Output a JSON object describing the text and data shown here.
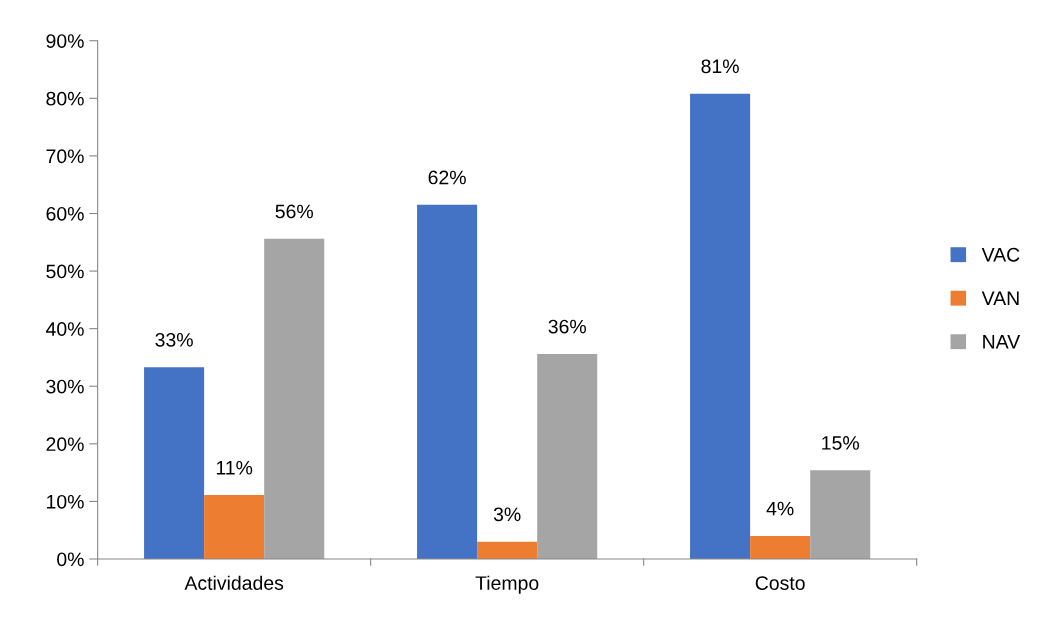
{
  "chart_data": {
    "type": "bar",
    "categories": [
      "Actividades",
      "Tiempo",
      "Costo"
    ],
    "series": [
      {
        "name": "VAC",
        "color": "#4472c4",
        "values": [
          33.3,
          61.5,
          80.8
        ],
        "value_labels": [
          "33%",
          "62%",
          "81%"
        ]
      },
      {
        "name": "VAN",
        "color": "#ed7d31",
        "values": [
          11.1,
          3.0,
          4.0
        ],
        "value_labels": [
          "11%",
          "3%",
          "4%"
        ]
      },
      {
        "name": "NAV",
        "color": "#a5a5a5",
        "values": [
          55.6,
          35.6,
          15.4
        ],
        "value_labels": [
          "56%",
          "36%",
          "15%"
        ]
      }
    ],
    "ylim": [
      0,
      90
    ],
    "yticks": [
      {
        "value": 0,
        "label": "0%"
      },
      {
        "value": 10,
        "label": "10%"
      },
      {
        "value": 20,
        "label": "20%"
      },
      {
        "value": 30,
        "label": "30%"
      },
      {
        "value": 40,
        "label": "40%"
      },
      {
        "value": 50,
        "label": "50%"
      },
      {
        "value": 60,
        "label": "60%"
      },
      {
        "value": 70,
        "label": "70%"
      },
      {
        "value": 80,
        "label": "80%"
      },
      {
        "value": 90,
        "label": "90%"
      }
    ],
    "grid": false,
    "legend": "right"
  }
}
